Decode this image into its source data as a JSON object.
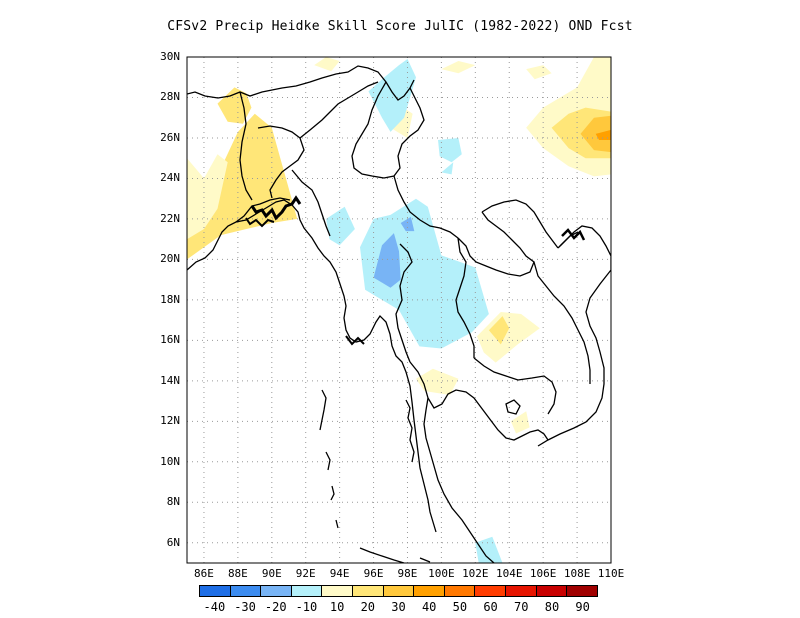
{
  "title": "CFSv2 Precip Heidke Skill Score JulIC (1982-2022) OND Fcst",
  "axes": {
    "y_labels": [
      "30N",
      "28N",
      "26N",
      "24N",
      "22N",
      "20N",
      "18N",
      "16N",
      "14N",
      "12N",
      "10N",
      "8N",
      "6N"
    ],
    "x_labels": [
      "86E",
      "88E",
      "90E",
      "92E",
      "94E",
      "96E",
      "98E",
      "100E",
      "102E",
      "104E",
      "106E",
      "108E",
      "110E"
    ],
    "lon_range": [
      85,
      110
    ],
    "lat_range": [
      5,
      30
    ]
  },
  "colorbar": {
    "labels": [
      "-40",
      "-30",
      "-20",
      "-10",
      "10",
      "20",
      "30",
      "40",
      "50",
      "60",
      "70",
      "80",
      "90"
    ],
    "colors": [
      "#1e6ee6",
      "#3c8cf0",
      "#78b4f5",
      "#b4f0fa",
      "#fffac8",
      "#ffe678",
      "#ffc83c",
      "#ffa000",
      "#ff7800",
      "#ff3c00",
      "#e61400",
      "#c80000",
      "#a00000"
    ]
  },
  "chart_data": {
    "type": "heatmap",
    "title": "CFSv2 Precip Heidke Skill Score JulIC (1982-2022) OND Fcst",
    "x_range": [
      85,
      110
    ],
    "y_range": [
      5,
      30
    ],
    "grid": true,
    "regions": [
      {
        "value": 20,
        "points": [
          [
            85,
            22
          ],
          [
            86,
            23
          ],
          [
            87,
            24.5
          ],
          [
            88,
            26.3
          ],
          [
            89,
            27.2
          ],
          [
            90,
            26.5
          ],
          [
            90.5,
            25
          ],
          [
            91,
            23.5
          ],
          [
            91.5,
            22
          ],
          [
            90,
            21.8
          ],
          [
            88.5,
            21.5
          ],
          [
            87,
            21.2
          ],
          [
            86,
            20.6
          ],
          [
            85,
            20
          ]
        ]
      },
      {
        "value": 10,
        "points": [
          [
            85,
            25
          ],
          [
            86,
            24
          ],
          [
            86.8,
            25.2
          ],
          [
            87.4,
            24.8
          ],
          [
            86.8,
            22.5
          ],
          [
            86,
            21.5
          ],
          [
            85,
            21
          ]
        ]
      },
      {
        "value": 20,
        "points": [
          [
            86.8,
            27.7
          ],
          [
            87.8,
            28.5
          ],
          [
            88.5,
            28.2
          ],
          [
            88.8,
            27.5
          ],
          [
            88.3,
            26.7
          ],
          [
            87.4,
            26.8
          ]
        ]
      },
      {
        "value": 10,
        "points": [
          [
            92.5,
            29.6
          ],
          [
            93.2,
            30
          ],
          [
            94,
            29.8
          ],
          [
            93.5,
            29.3
          ]
        ]
      },
      {
        "value": 10,
        "points": [
          [
            100,
            29.4
          ],
          [
            101,
            29.8
          ],
          [
            102,
            29.6
          ],
          [
            101,
            29.2
          ]
        ]
      },
      {
        "value": 10,
        "points": [
          [
            105,
            29.4
          ],
          [
            106,
            29.6
          ],
          [
            106.5,
            29.2
          ],
          [
            105.5,
            28.9
          ]
        ]
      },
      {
        "value": 10,
        "points": [
          [
            105,
            26.5
          ],
          [
            106,
            27.5
          ],
          [
            108,
            28.5
          ],
          [
            109,
            30
          ],
          [
            110,
            30
          ],
          [
            110,
            24.2
          ],
          [
            109,
            24.1
          ],
          [
            107.5,
            24.6
          ],
          [
            106,
            25.5
          ]
        ]
      },
      {
        "value": 20,
        "points": [
          [
            106.5,
            26.5
          ],
          [
            107.5,
            27.2
          ],
          [
            108.5,
            27.5
          ],
          [
            110,
            27.3
          ],
          [
            110,
            25
          ],
          [
            108.5,
            25
          ],
          [
            107.5,
            25.5
          ]
        ]
      },
      {
        "value": 30,
        "points": [
          [
            108.2,
            26.2
          ],
          [
            109,
            27
          ],
          [
            110,
            27.1
          ],
          [
            110,
            25.3
          ],
          [
            109,
            25.4
          ]
        ]
      },
      {
        "value": 40,
        "points": [
          [
            109.1,
            26.2
          ],
          [
            110,
            26.4
          ],
          [
            110,
            25.9
          ],
          [
            109.3,
            25.9
          ]
        ]
      },
      {
        "value": 10,
        "points": [
          [
            97,
            26.5
          ],
          [
            97.6,
            27.6
          ],
          [
            98.3,
            27.2
          ],
          [
            98,
            26
          ]
        ]
      },
      {
        "value": 10,
        "points": [
          [
            102.1,
            16.2
          ],
          [
            103.5,
            17.4
          ],
          [
            104.7,
            17.3
          ],
          [
            105.8,
            16.6
          ],
          [
            104.5,
            15.8
          ],
          [
            103.2,
            14.9
          ],
          [
            102.5,
            15.4
          ]
        ]
      },
      {
        "value": 20,
        "points": [
          [
            102.8,
            16.5
          ],
          [
            103.6,
            17.2
          ],
          [
            104,
            16.6
          ],
          [
            103.5,
            15.8
          ]
        ]
      },
      {
        "value": 10,
        "points": [
          [
            98.5,
            14.1
          ],
          [
            99.5,
            14.6
          ],
          [
            101,
            14.1
          ],
          [
            100.5,
            13.3
          ],
          [
            99,
            13.5
          ]
        ]
      },
      {
        "value": 10,
        "points": [
          [
            104.1,
            12
          ],
          [
            105,
            12.5
          ],
          [
            105.2,
            11.7
          ],
          [
            104.4,
            11.4
          ]
        ]
      },
      {
        "value": -10,
        "points": [
          [
            96,
            22
          ],
          [
            97,
            22.2
          ],
          [
            98.5,
            23
          ],
          [
            99.2,
            22.6
          ],
          [
            100,
            20.2
          ],
          [
            101,
            19.9
          ],
          [
            102,
            19.6
          ],
          [
            102.8,
            17.3
          ],
          [
            101.8,
            16.4
          ],
          [
            100,
            15.6
          ],
          [
            98.7,
            15.7
          ],
          [
            97.5,
            17.5
          ],
          [
            95.5,
            18.5
          ],
          [
            95.2,
            20.6
          ]
        ]
      },
      {
        "value": -10,
        "points": [
          [
            93.2,
            22
          ],
          [
            94.3,
            22.6
          ],
          [
            94.9,
            21.5
          ],
          [
            94,
            20.7
          ],
          [
            93.4,
            21
          ]
        ]
      },
      {
        "value": -10,
        "points": [
          [
            95.7,
            28.3
          ],
          [
            96.5,
            28.9
          ],
          [
            97.5,
            29.6
          ],
          [
            98,
            29.9
          ],
          [
            98.5,
            29
          ],
          [
            97.8,
            27
          ],
          [
            97,
            26.3
          ],
          [
            96.5,
            27
          ]
        ]
      },
      {
        "value": -10,
        "points": [
          [
            99.8,
            25.9
          ],
          [
            101,
            26
          ],
          [
            101.2,
            25.2
          ],
          [
            100.6,
            24.8
          ],
          [
            99.9,
            25.1
          ]
        ]
      },
      {
        "value": -10,
        "points": [
          [
            100,
            24.3
          ],
          [
            100.7,
            24.8
          ],
          [
            100.6,
            24.2
          ]
        ]
      },
      {
        "value": -20,
        "points": [
          [
            96,
            19.1
          ],
          [
            96.5,
            20.7
          ],
          [
            97.2,
            21.3
          ],
          [
            97.5,
            20.4
          ],
          [
            97.6,
            19
          ],
          [
            97,
            18.6
          ]
        ]
      },
      {
        "value": -20,
        "points": [
          [
            97.6,
            21.8
          ],
          [
            98.2,
            22.1
          ],
          [
            98.4,
            21.4
          ],
          [
            97.9,
            21.4
          ]
        ]
      },
      {
        "value": -10,
        "points": [
          [
            102,
            6
          ],
          [
            103,
            6.3
          ],
          [
            103.6,
            5
          ],
          [
            102.2,
            5
          ]
        ]
      }
    ]
  }
}
